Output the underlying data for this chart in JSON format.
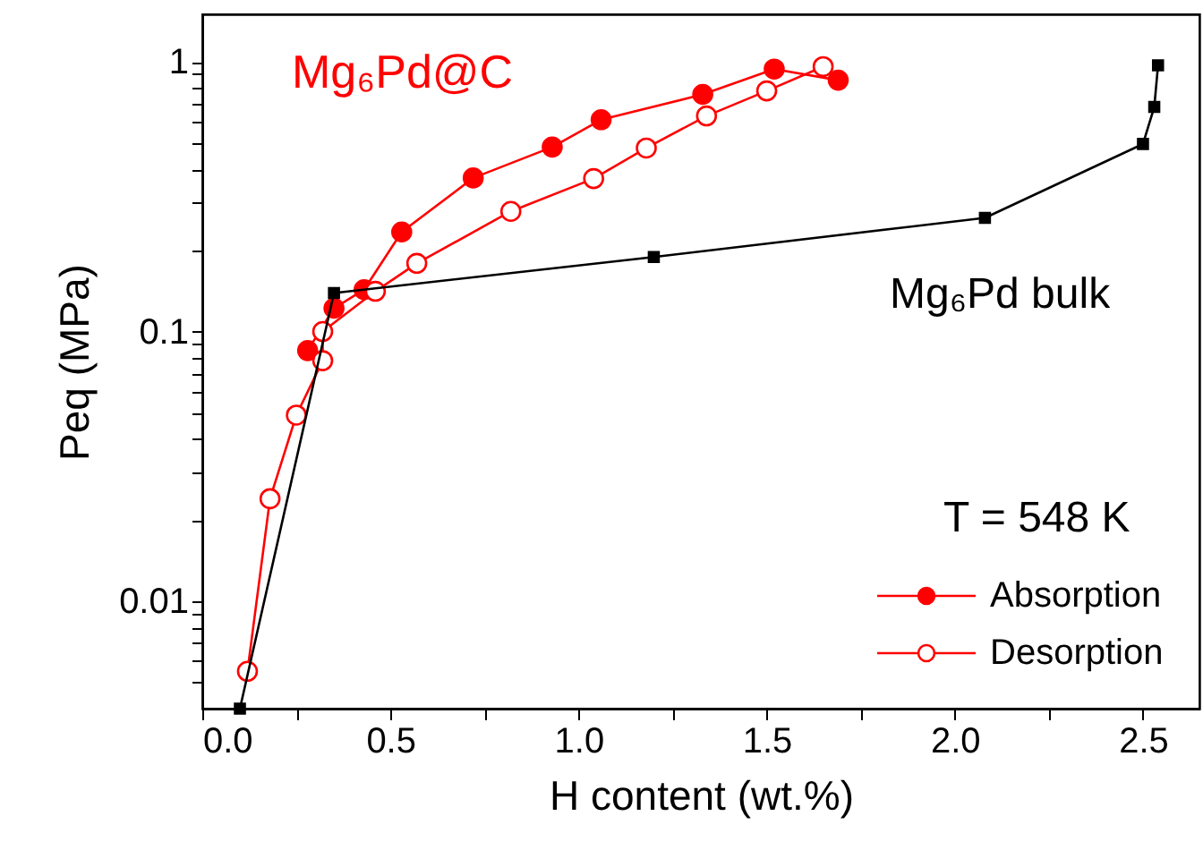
{
  "chart_data": {
    "type": "line",
    "xlabel": "H content (wt.%)",
    "ylabel": "Peq (MPa)",
    "log": "y",
    "grid": false,
    "legend": "bottom right",
    "xlim": [
      0,
      2.65
    ],
    "ylim": [
      0.004,
      1.5
    ],
    "xticks": [
      {
        "value": 0,
        "label": "0.0"
      },
      {
        "value": 0.25,
        "label": null
      },
      {
        "value": 0.5,
        "label": "0.5"
      },
      {
        "value": 0.75,
        "label": null
      },
      {
        "value": 1,
        "label": "1.0"
      },
      {
        "value": 1.25,
        "label": null
      },
      {
        "value": 1.5,
        "label": "1.5"
      },
      {
        "value": 1.75,
        "label": null
      },
      {
        "value": 2,
        "label": "2.0"
      },
      {
        "value": 2.25,
        "label": null
      },
      {
        "value": 2.5,
        "label": "2.5"
      }
    ],
    "yticks": [
      {
        "value": 0.005,
        "label": null
      },
      {
        "value": 0.006,
        "label": null
      },
      {
        "value": 0.007,
        "label": null
      },
      {
        "value": 0.008,
        "label": null
      },
      {
        "value": 0.009,
        "label": null
      },
      0.01,
      {
        "value": 0.02,
        "label": null
      },
      {
        "value": 0.03,
        "label": null
      },
      {
        "value": 0.04,
        "label": null
      },
      {
        "value": 0.05,
        "label": null
      },
      {
        "value": 0.06,
        "label": null
      },
      {
        "value": 0.07,
        "label": null
      },
      {
        "value": 0.08,
        "label": null
      },
      {
        "value": 0.09,
        "label": null
      },
      0.1,
      {
        "value": 0.2,
        "label": null
      },
      {
        "value": 0.3,
        "label": null
      },
      {
        "value": 0.4,
        "label": null
      },
      {
        "value": 0.5,
        "label": null
      },
      {
        "value": 0.6,
        "label": null
      },
      {
        "value": 0.7,
        "label": null
      },
      {
        "value": 0.8,
        "label": null
      },
      {
        "value": 0.9,
        "label": null
      },
      1
    ],
    "annotations": [
      "Mg₆Pd@C",
      "Mg₆Pd bulk",
      "T = 548 K"
    ],
    "series": [
      {
        "name": "Absorption",
        "color": "#ff0000",
        "marker": "circle",
        "x": [
          0.28,
          0.35,
          0.43,
          0.53,
          0.72,
          0.93,
          1.06,
          1.33,
          1.52,
          1.69
        ],
        "values": [
          0.085,
          0.122,
          0.143,
          0.234,
          0.371,
          0.483,
          0.61,
          0.757,
          0.94,
          0.855
        ]
      },
      {
        "name": "Desorption",
        "color": "#ff0000",
        "marker": "circle",
        "x": [
          0.12,
          0.18,
          0.25,
          0.32,
          0.32,
          0.46,
          0.57,
          0.82,
          1.04,
          1.18,
          1.34,
          1.5,
          1.65
        ],
        "values": [
          0.0055,
          0.024,
          0.049,
          0.078,
          0.1,
          0.141,
          0.179,
          0.279,
          0.369,
          0.479,
          0.63,
          0.78,
          0.96
        ]
      },
      {
        "color": "#000000",
        "marker": "square",
        "x": [
          0.1,
          0.35,
          1.2,
          2.08,
          2.5,
          2.53,
          2.54
        ],
        "values": [
          0.004,
          0.139,
          0.189,
          0.264,
          0.496,
          0.68,
          0.97
        ]
      }
    ]
  }
}
